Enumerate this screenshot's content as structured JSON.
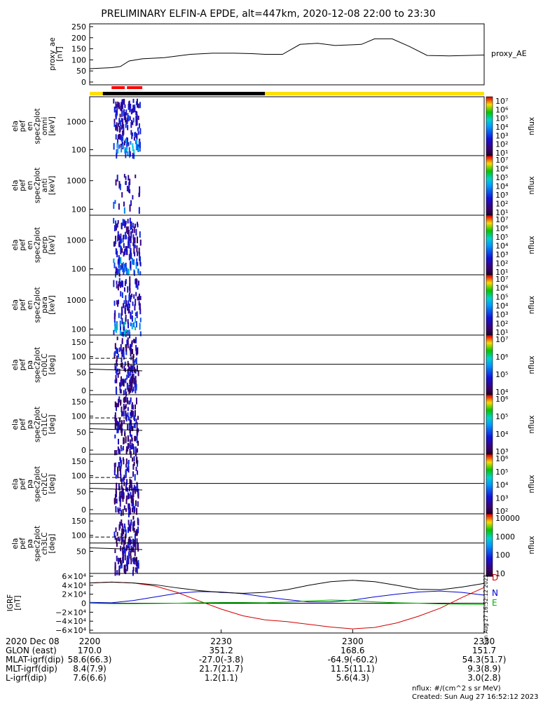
{
  "title": "PRELIMINARY ELFIN-A EPDE, alt=447km, 2020-12-08 22:00 to 23:30",
  "colors": {
    "state_bar_yellow": "#ffe000",
    "state_bar_black": "#000000",
    "science_zone_red": "#ff0000",
    "igrf_d": "#d00000",
    "igrf_n": "#0000d0",
    "igrf_e": "#00b000"
  },
  "chart_data": [
    {
      "id": "proxy_ae",
      "type": "line",
      "ylabel": [
        "proxy_ae",
        "[nT]"
      ],
      "ytick_labels": [
        "250",
        "200",
        "150",
        "100",
        "50",
        "0"
      ],
      "ylim": [
        0,
        260
      ],
      "xlim": [
        0,
        90
      ],
      "legend": "proxy_AE",
      "x": [
        0,
        5,
        7,
        9,
        12,
        17,
        23,
        28,
        33,
        37,
        40,
        44,
        48,
        52,
        56,
        62,
        65,
        69,
        73,
        77,
        82,
        90
      ],
      "y": [
        60,
        65,
        70,
        95,
        105,
        110,
        125,
        130,
        130,
        128,
        125,
        125,
        170,
        175,
        165,
        170,
        195,
        195,
        160,
        120,
        118,
        122
      ]
    },
    {
      "id": "omni",
      "type": "heatmap",
      "ylabel": [
        "ela",
        "pef",
        "en",
        "spec2plot",
        "omni",
        "[keV]"
      ],
      "ytick_labels": [
        "1000",
        "100"
      ],
      "colorbar_ticks": [
        "10⁷",
        "10⁶",
        "10⁵",
        "10⁴",
        "10³",
        "10²",
        "10¹"
      ],
      "colorbar_label": "nflux",
      "yscale": "log"
    },
    {
      "id": "anti",
      "type": "heatmap",
      "ylabel": [
        "ela",
        "pef",
        "en",
        "spec2plot",
        "anti",
        "[keV]"
      ],
      "ytick_labels": [
        "1000",
        "100"
      ],
      "colorbar_ticks": [
        "10⁷",
        "10⁶",
        "10⁵",
        "10⁴",
        "10³",
        "10²",
        "10¹"
      ],
      "colorbar_label": "nflux",
      "yscale": "log"
    },
    {
      "id": "perp",
      "type": "heatmap",
      "ylabel": [
        "ela",
        "pef",
        "en",
        "spec2plot",
        "perp",
        "[keV]"
      ],
      "ytick_labels": [
        "1000",
        "100"
      ],
      "colorbar_ticks": [
        "10⁷",
        "10⁶",
        "10⁵",
        "10⁴",
        "10³",
        "10²",
        "10¹"
      ],
      "colorbar_label": "nflux",
      "yscale": "log"
    },
    {
      "id": "para",
      "type": "heatmap",
      "ylabel": [
        "ela",
        "pef",
        "en",
        "spec2plot",
        "para",
        "[keV]"
      ],
      "ytick_labels": [
        "1000",
        "100"
      ],
      "colorbar_ticks": [
        "10⁷",
        "10⁶",
        "10⁵",
        "10⁴",
        "10³",
        "10²",
        "10¹"
      ],
      "colorbar_label": "nflux",
      "yscale": "log"
    },
    {
      "id": "ch0LC",
      "type": "heatmap",
      "ylabel": [
        "ela",
        "pef",
        "pa",
        "spec2plot",
        "ch0LC",
        "[deg]"
      ],
      "ytick_labels": [
        "150",
        "100",
        "50",
        "0"
      ],
      "ylim": [
        0,
        180
      ],
      "colorbar_ticks": [
        "10⁷",
        "10⁶",
        "10⁵",
        "10⁴"
      ],
      "colorbar_label": "nflux"
    },
    {
      "id": "ch1LC",
      "type": "heatmap",
      "ylabel": [
        "ela",
        "pef",
        "pa",
        "spec2plot",
        "ch1LC",
        "[deg]"
      ],
      "ytick_labels": [
        "150",
        "100",
        "50",
        "0"
      ],
      "ylim": [
        0,
        180
      ],
      "colorbar_ticks": [
        "10⁶",
        "10⁵",
        "10⁴",
        "10³"
      ],
      "colorbar_label": "nflux"
    },
    {
      "id": "ch2LC",
      "type": "heatmap",
      "ylabel": [
        "ela",
        "pef",
        "pa",
        "spec2plot",
        "ch2LC",
        "[deg]"
      ],
      "ytick_labels": [
        "150",
        "100",
        "50",
        "0"
      ],
      "ylim": [
        0,
        180
      ],
      "colorbar_ticks": [
        "10⁶",
        "10⁵",
        "10⁴",
        "10³",
        "10²"
      ],
      "colorbar_label": "nflux"
    },
    {
      "id": "ch3LC",
      "type": "heatmap",
      "ylabel": [
        "ela",
        "pef",
        "pa",
        "spec2plot",
        "ch3LC",
        "[deg]"
      ],
      "ytick_labels": [
        "150",
        "100",
        "50"
      ],
      "ylim": [
        0,
        180
      ],
      "colorbar_ticks": [
        "10000",
        "1000",
        "100",
        "10"
      ],
      "colorbar_label": "nflux"
    },
    {
      "id": "igrf",
      "type": "line",
      "ylabel": [
        "IGRF",
        "[nT]"
      ],
      "ytick_labels": [
        "6×10⁴",
        "4×10⁴",
        "2×10⁴",
        "0",
        "−2×10⁴",
        "−4×10⁴",
        "−6×10⁴"
      ],
      "ylim": [
        -60000,
        60000
      ],
      "xlim": [
        0,
        90
      ],
      "legend": [
        "D",
        "N",
        "E"
      ],
      "series": [
        {
          "name": "D",
          "x": [
            0,
            5,
            10,
            15,
            20,
            25,
            30,
            35,
            40,
            45,
            50,
            55,
            60,
            65,
            70,
            75,
            80,
            85,
            90
          ],
          "values": [
            45000,
            47000,
            45000,
            38000,
            24000,
            5000,
            -13000,
            -28000,
            -37000,
            -41000,
            -47000,
            -53000,
            -57000,
            -54000,
            -44000,
            -29000,
            -11000,
            13000,
            35000
          ]
        },
        {
          "name": "N",
          "x": [
            0,
            5,
            10,
            15,
            20,
            25,
            30,
            35,
            40,
            45,
            50,
            55,
            60,
            65,
            70,
            75,
            80,
            85,
            90
          ],
          "values": [
            2000,
            1000,
            6000,
            14000,
            22000,
            26000,
            25000,
            21000,
            14000,
            8000,
            3000,
            3000,
            7000,
            14000,
            20000,
            25000,
            27000,
            24000,
            18000
          ]
        },
        {
          "name": "E",
          "x": [
            0,
            5,
            10,
            15,
            20,
            25,
            30,
            35,
            40,
            45,
            50,
            55,
            60,
            65,
            70,
            75,
            80,
            85,
            90
          ],
          "values": [
            0,
            -1000,
            -1000,
            -500,
            0,
            1000,
            1500,
            1500,
            1000,
            2500,
            5000,
            7000,
            6000,
            3000,
            1000,
            0,
            -1500,
            -2500,
            -3000
          ]
        },
        {
          "name": "|B|",
          "x": [
            0,
            5,
            10,
            15,
            20,
            25,
            30,
            35,
            40,
            45,
            50,
            55,
            60,
            65,
            70,
            75,
            80,
            85,
            90
          ],
          "values": [
            45000,
            47000,
            45000,
            41000,
            34000,
            28000,
            24000,
            22000,
            24000,
            30000,
            40000,
            48000,
            51000,
            48000,
            40000,
            31000,
            30000,
            36000,
            44000
          ]
        }
      ]
    }
  ],
  "state_bar": {
    "segments": [
      {
        "start": 0,
        "end": 3,
        "color": "yellow"
      },
      {
        "start": 3,
        "end": 40,
        "color": "black"
      },
      {
        "start": 40,
        "end": 90,
        "color": "yellow"
      }
    ]
  },
  "science_zones": [
    {
      "start": 5,
      "end": 8
    },
    {
      "start": 8.5,
      "end": 12
    }
  ],
  "side_stamp": "Sun Aug 27 16:52:12 2023",
  "x_axis": {
    "rows": [
      {
        "label": "2020 Dec 08",
        "values": [
          "2200",
          "2230",
          "2300",
          "2330"
        ]
      },
      {
        "label": "GLON (east)",
        "values": [
          "170.0",
          "351.2",
          "168.6",
          "151.7"
        ]
      },
      {
        "label": "MLAT-igrf(dip)",
        "values": [
          "58.6(66.3)",
          "-27.0(-3.8)",
          "-64.9(-60.2)",
          "54.3(51.7)"
        ]
      },
      {
        "label": "MLT-igrf(dip)",
        "values": [
          "8.4(7.9)",
          "21.7(21.7)",
          "11.5(11.1)",
          "9.3(8.9)"
        ]
      },
      {
        "label": "L-igrf(dip)",
        "values": [
          "7.6(6.6)",
          "1.2(1.1)",
          "5.6(4.3)",
          "3.0(2.8)"
        ]
      }
    ]
  },
  "footer": {
    "units": "nflux: #/(cm^2 s sr MeV)",
    "created": "Created: Sun Aug 27 16:52:12 2023"
  }
}
